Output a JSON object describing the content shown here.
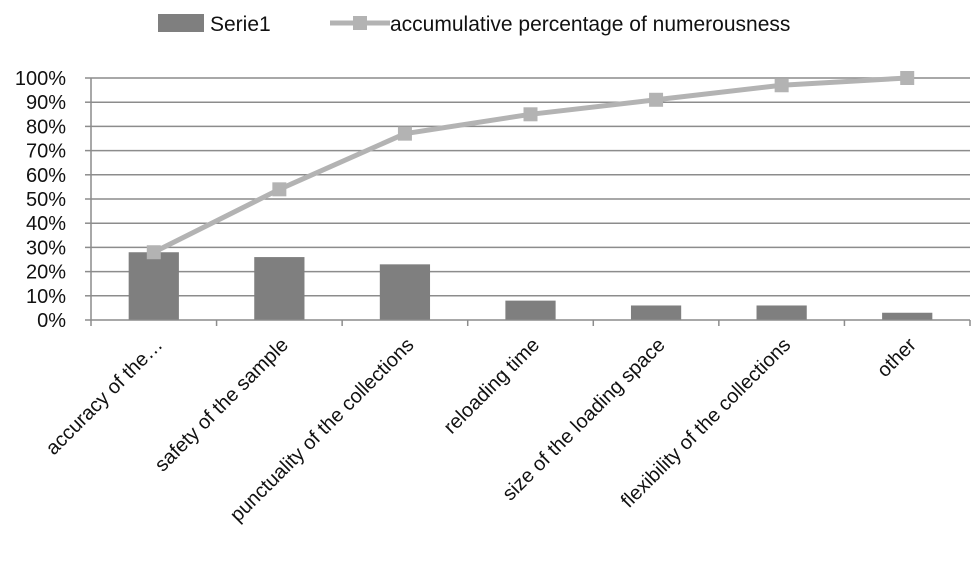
{
  "chart_data": {
    "type": "bar",
    "categories": [
      "accuracy of the…",
      "safety of the sample",
      "punctuality of the collections",
      "reloading time",
      "size of the loading space",
      "flexibility of the collections",
      "other"
    ],
    "series": [
      {
        "name": "Serie1",
        "type": "bar",
        "color": "#7f7f7f",
        "values": [
          28,
          26,
          23,
          8,
          6,
          6,
          3
        ]
      },
      {
        "name": "accumulative percentage of numerousness",
        "type": "line",
        "color": "#b3b3b3",
        "values": [
          28,
          54,
          77,
          85,
          91,
          97,
          100
        ]
      }
    ],
    "y_ticks": [
      "0%",
      "10%",
      "20%",
      "30%",
      "40%",
      "50%",
      "60%",
      "70%",
      "80%",
      "90%",
      "100%"
    ],
    "ylim": [
      0,
      100
    ],
    "grid": true,
    "legend_position": "top-center"
  }
}
